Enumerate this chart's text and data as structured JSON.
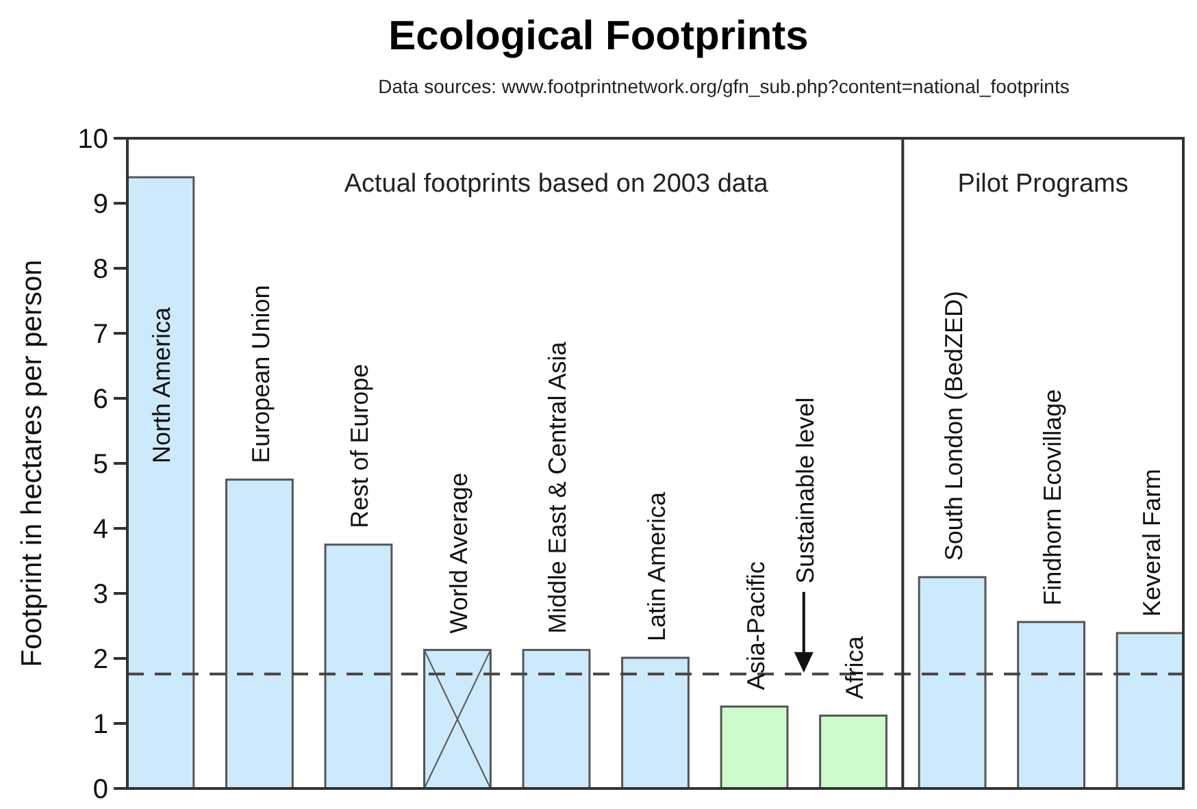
{
  "chart_data": {
    "type": "bar",
    "title": "Ecological Footprints",
    "ylabel": "Footprint in hectares per person",
    "categories": [
      "North America",
      "European Union",
      "Rest of Europe",
      "World Average",
      "Middle East & Central Asia",
      "Latin America",
      "Asia-Pacific",
      "Africa",
      "South London (BedZED)",
      "Findhorn Ecovillage",
      "Keveral Farm"
    ],
    "values": [
      9.4,
      4.75,
      3.75,
      2.13,
      2.13,
      2.01,
      1.26,
      1.12,
      3.25,
      2.56,
      2.39
    ],
    "colors": [
      "#cdeafc",
      "#cdeafc",
      "#cdeafc",
      "#cdeafc",
      "#cdeafc",
      "#cdeafc",
      "#ccfccc",
      "#ccfccc",
      "#cdeafc",
      "#cdeafc",
      "#cdeafc"
    ],
    "ylim": [
      0,
      10
    ],
    "yticks": [
      0,
      1,
      2,
      3,
      4,
      5,
      6,
      7,
      8,
      9,
      10
    ],
    "ref_lines": [
      {
        "axis": "y",
        "value": 1.76,
        "line_style": "dashed",
        "color": "#444444"
      }
    ],
    "annotations": [
      "Data sources: www.footprintnetwork.org/gfn_sub.php?content=national_footprints",
      "Actual footprints based on 2003 data",
      "Pilot Programs",
      "Sustainable level"
    ]
  }
}
